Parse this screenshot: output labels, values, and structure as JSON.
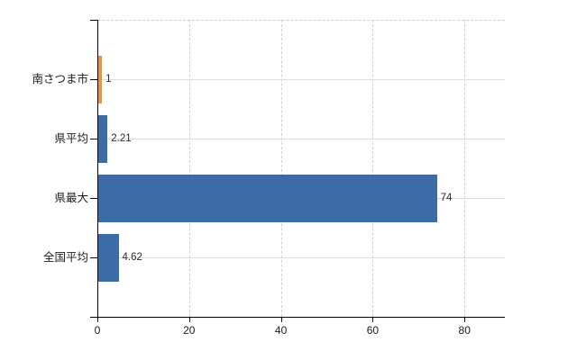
{
  "chart_data": {
    "type": "bar",
    "orientation": "horizontal",
    "title": "",
    "xlabel": "",
    "ylabel": "",
    "categories": [
      "南さつま市",
      "県平均",
      "県最大",
      "全国平均"
    ],
    "values": [
      1,
      2.21,
      74,
      4.62
    ],
    "value_labels": [
      "1",
      "2.21",
      "74",
      "4.62"
    ],
    "bar_colors": [
      "#f09134",
      "#3c6ca6",
      "#3c6ca6",
      "#3c6ca6"
    ],
    "x_ticks": [
      0,
      20,
      40,
      60,
      80
    ],
    "xlim": [
      0,
      88.8
    ],
    "grid": true,
    "legend": "none",
    "colors": {
      "axis": "#000000",
      "h_gridline": "#d9ded9",
      "v_gridline": "#cfcfcf",
      "text": "#1a1a1a",
      "background": "#ffffff"
    }
  }
}
